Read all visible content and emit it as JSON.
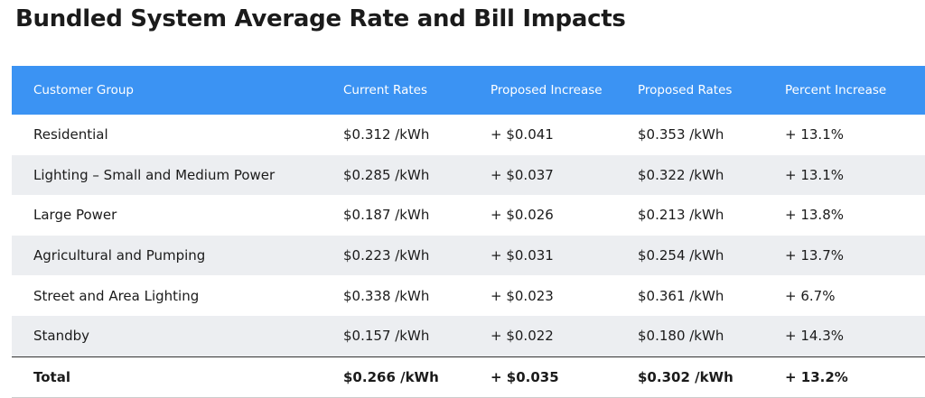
{
  "header": {
    "title": "Bundled System Average Rate and Bill Impacts"
  },
  "table": {
    "columns": [
      "Customer Group",
      "Current Rates",
      "Proposed Increase",
      "Proposed Rates",
      "Percent Increase"
    ],
    "rows": [
      [
        "Residential",
        "$0.312 /kWh",
        "+ $0.041",
        "$0.353 /kWh",
        "+ 13.1%"
      ],
      [
        "Lighting – Small and Medium Power",
        "$0.285 /kWh",
        "+ $0.037",
        "$0.322 /kWh",
        "+ 13.1%"
      ],
      [
        "Large Power",
        "$0.187 /kWh",
        "+ $0.026",
        "$0.213 /kWh",
        "+ 13.8%"
      ],
      [
        "Agricultural and Pumping",
        "$0.223 /kWh",
        "+ $0.031",
        "$0.254 /kWh",
        "+ 13.7%"
      ],
      [
        "Street and Area Lighting",
        "$0.338 /kWh",
        "+ $0.023",
        "$0.361 /kWh",
        "+ 6.7%"
      ],
      [
        "Standby",
        "$0.157 /kWh",
        "+ $0.022",
        "$0.180 /kWh",
        "+ 14.3%"
      ]
    ],
    "total": [
      "Total",
      "$0.266 /kWh",
      "+ $0.035",
      "$0.302 /kWh",
      "+ 13.2%"
    ]
  }
}
